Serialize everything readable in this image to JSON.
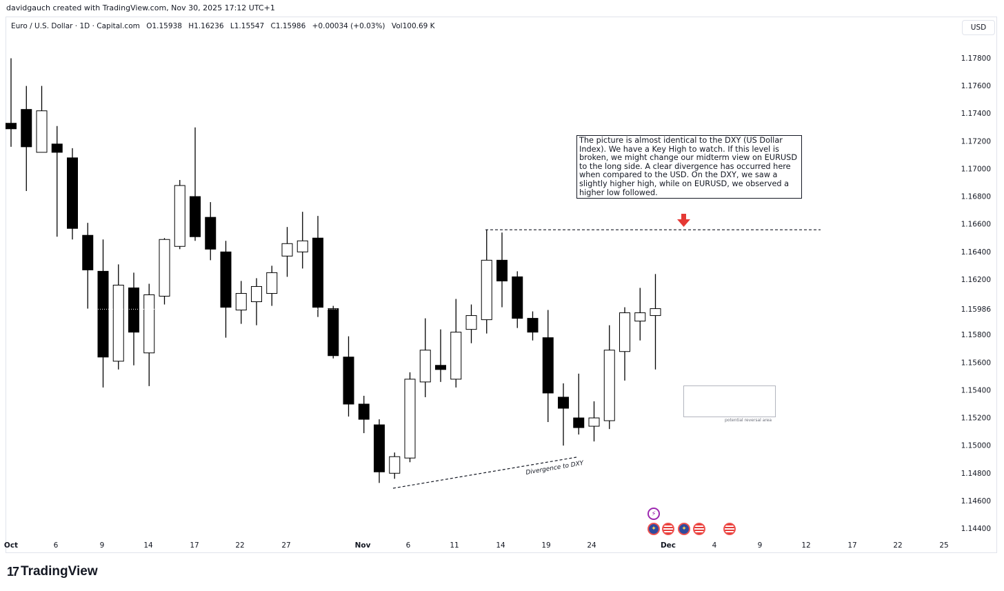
{
  "header": {
    "credit": "davidgauch created with TradingView.com, Nov 30, 2025 17:12 UTC+1"
  },
  "legend": {
    "symbol": "Euro / U.S. Dollar · 1D · Capital.com",
    "open": "O1.15938",
    "high": "H1.16236",
    "low": "L1.15547",
    "close": "C1.15986",
    "change": "+0.00034 (+0.03%)",
    "volume": "Vol100.69 K"
  },
  "currency_button": "USD",
  "annotation_text": "The picture is almost identical to the DXY (US Dollar Index). We have a Key High to watch. If this level is broken, we might change our midterm view on EURUSD to the long side. A clear divergence has occurred here when compared to the USD. On the DXY, we saw a slightly higher high, while on EURUSD, we observed a higher low followed.",
  "reversal_label": "potential reversal area",
  "divergence_label": "Divergence to DXY",
  "key_high_level": 1.1656,
  "events": {
    "flash_icon": "lightning-icon",
    "flags": [
      "eu-flag-icon",
      "us-flag-icon",
      "eu-flag-icon",
      "us-flag-icon",
      "us-flag-icon"
    ]
  },
  "footer": {
    "logo_text": "TradingView",
    "logo_mark": "17"
  },
  "colors": {
    "bear": "#000000",
    "bull": "#ffffff",
    "outline": "#000000",
    "arrow": "#e53935"
  },
  "chart_data": {
    "type": "candlestick",
    "title": "Euro / U.S. Dollar · 1D · Capital.com",
    "ylabel": "USD",
    "ylim": [
      1.1435,
      1.1825
    ],
    "y_ticks": [
      "1.17800",
      "1.17600",
      "1.17400",
      "1.17200",
      "1.17000",
      "1.16800",
      "1.16600",
      "1.16400",
      "1.16200",
      "1.15986",
      "1.15800",
      "1.15600",
      "1.15400",
      "1.15200",
      "1.15000",
      "1.14800",
      "1.14600",
      "1.14400"
    ],
    "x_ticks": [
      "Oct",
      "6",
      "9",
      "14",
      "17",
      "22",
      "27",
      "Nov",
      "6",
      "11",
      "14",
      "19",
      "24",
      "Dec",
      "4",
      "9",
      "12",
      "17",
      "22",
      "25"
    ],
    "last_price": 1.15986,
    "candles": [
      {
        "o": 1.1733,
        "h": 1.178,
        "l": 1.1716,
        "c": 1.1729
      },
      {
        "o": 1.1743,
        "h": 1.176,
        "l": 1.1684,
        "c": 1.1716
      },
      {
        "o": 1.1712,
        "h": 1.176,
        "l": 1.1712,
        "c": 1.1742
      },
      {
        "o": 1.1718,
        "h": 1.1731,
        "l": 1.1651,
        "c": 1.1712
      },
      {
        "o": 1.1708,
        "h": 1.1715,
        "l": 1.1649,
        "c": 1.1657
      },
      {
        "o": 1.1652,
        "h": 1.1661,
        "l": 1.1599,
        "c": 1.1627
      },
      {
        "o": 1.1626,
        "h": 1.1649,
        "l": 1.1542,
        "c": 1.1564
      },
      {
        "o": 1.1561,
        "h": 1.1631,
        "l": 1.1555,
        "c": 1.1616
      },
      {
        "o": 1.1614,
        "h": 1.1625,
        "l": 1.1558,
        "c": 1.1582
      },
      {
        "o": 1.1567,
        "h": 1.1617,
        "l": 1.1543,
        "c": 1.1609
      },
      {
        "o": 1.1608,
        "h": 1.165,
        "l": 1.1602,
        "c": 1.1649
      },
      {
        "o": 1.1644,
        "h": 1.1692,
        "l": 1.1642,
        "c": 1.1688
      },
      {
        "o": 1.168,
        "h": 1.173,
        "l": 1.1648,
        "c": 1.1651
      },
      {
        "o": 1.1665,
        "h": 1.1676,
        "l": 1.1634,
        "c": 1.1642
      },
      {
        "o": 1.164,
        "h": 1.1648,
        "l": 1.1578,
        "c": 1.16
      },
      {
        "o": 1.1598,
        "h": 1.1619,
        "l": 1.1588,
        "c": 1.161
      },
      {
        "o": 1.1604,
        "h": 1.1621,
        "l": 1.1587,
        "c": 1.1615
      },
      {
        "o": 1.161,
        "h": 1.163,
        "l": 1.1601,
        "c": 1.1625
      },
      {
        "o": 1.1637,
        "h": 1.1658,
        "l": 1.1622,
        "c": 1.1646
      },
      {
        "o": 1.164,
        "h": 1.1669,
        "l": 1.1628,
        "c": 1.1648
      },
      {
        "o": 1.165,
        "h": 1.1666,
        "l": 1.1593,
        "c": 1.16
      },
      {
        "o": 1.1599,
        "h": 1.1601,
        "l": 1.1563,
        "c": 1.1565
      },
      {
        "o": 1.1564,
        "h": 1.1579,
        "l": 1.1521,
        "c": 1.153
      },
      {
        "o": 1.153,
        "h": 1.1536,
        "l": 1.1509,
        "c": 1.1519
      },
      {
        "o": 1.1515,
        "h": 1.1519,
        "l": 1.1473,
        "c": 1.1481
      },
      {
        "o": 1.148,
        "h": 1.1495,
        "l": 1.1476,
        "c": 1.1492
      },
      {
        "o": 1.1491,
        "h": 1.1553,
        "l": 1.1488,
        "c": 1.1548
      },
      {
        "o": 1.1546,
        "h": 1.1592,
        "l": 1.1535,
        "c": 1.1569
      },
      {
        "o": 1.1558,
        "h": 1.1584,
        "l": 1.1546,
        "c": 1.1555
      },
      {
        "o": 1.1548,
        "h": 1.1606,
        "l": 1.1542,
        "c": 1.1582
      },
      {
        "o": 1.1584,
        "h": 1.1602,
        "l": 1.1574,
        "c": 1.1594
      },
      {
        "o": 1.1591,
        "h": 1.1656,
        "l": 1.1581,
        "c": 1.1634
      },
      {
        "o": 1.1634,
        "h": 1.1654,
        "l": 1.16,
        "c": 1.1619
      },
      {
        "o": 1.1622,
        "h": 1.1626,
        "l": 1.1585,
        "c": 1.1592
      },
      {
        "o": 1.1592,
        "h": 1.1597,
        "l": 1.1576,
        "c": 1.1582
      },
      {
        "o": 1.1578,
        "h": 1.1598,
        "l": 1.1517,
        "c": 1.1538
      },
      {
        "o": 1.1535,
        "h": 1.1545,
        "l": 1.15,
        "c": 1.1527
      },
      {
        "o": 1.152,
        "h": 1.1552,
        "l": 1.1508,
        "c": 1.1513
      },
      {
        "o": 1.1514,
        "h": 1.1532,
        "l": 1.1503,
        "c": 1.152
      },
      {
        "o": 1.1518,
        "h": 1.1587,
        "l": 1.1512,
        "c": 1.1569
      },
      {
        "o": 1.1568,
        "h": 1.16,
        "l": 1.1547,
        "c": 1.1596
      },
      {
        "o": 1.159,
        "h": 1.1614,
        "l": 1.1576,
        "c": 1.1596
      },
      {
        "o": 1.1594,
        "h": 1.1624,
        "l": 1.1555,
        "c": 1.1599
      }
    ]
  }
}
